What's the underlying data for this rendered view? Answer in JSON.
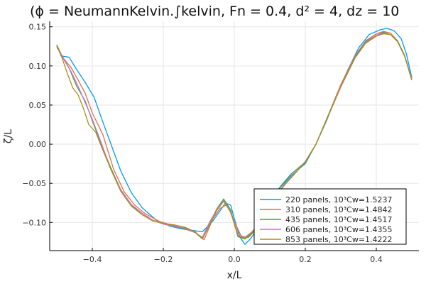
{
  "chart_data": {
    "type": "line",
    "title": "(ϕ = NeumannKelvin.∫kelvin, Fn = 0.4, d² = 4, dz = 10",
    "xlabel": "x/L",
    "ylabel": "ζ/L",
    "xlim": [
      -0.52,
      0.52
    ],
    "ylim": [
      -0.136,
      0.157
    ],
    "xticks": [
      -0.4,
      -0.2,
      0.0,
      0.2,
      0.4
    ],
    "xtick_labels": [
      "−0.4",
      "−0.2",
      "0.0",
      "0.2",
      "0.4"
    ],
    "yticks": [
      0.15,
      0.1,
      0.05,
      0.0,
      -0.05,
      -0.1
    ],
    "ytick_labels": [
      "0.15",
      "0.10",
      "0.05",
      "0.00",
      "−0.05",
      "−0.10"
    ],
    "grid": true,
    "legend_position": "bottom-right",
    "series": [
      {
        "name": "220 panels, 10³Cw=1.5237",
        "color": "#009AFA",
        "x": [
          -0.49,
          -0.465,
          -0.445,
          -0.42,
          -0.395,
          -0.37,
          -0.345,
          -0.32,
          -0.29,
          -0.26,
          -0.22,
          -0.18,
          -0.15,
          -0.12,
          -0.09,
          -0.06,
          -0.04,
          -0.025,
          -0.01,
          0.0,
          0.015,
          0.03,
          0.045,
          0.06,
          0.08,
          0.1,
          0.13,
          0.16,
          0.2,
          0.23,
          0.26,
          0.29,
          0.32,
          0.35,
          0.38,
          0.41,
          0.43,
          0.45,
          0.47,
          0.485,
          0.5
        ],
        "y": [
          0.113,
          0.111,
          0.096,
          0.079,
          0.06,
          0.028,
          -0.003,
          -0.034,
          -0.062,
          -0.081,
          -0.097,
          -0.105,
          -0.108,
          -0.11,
          -0.112,
          -0.098,
          -0.085,
          -0.075,
          -0.078,
          -0.095,
          -0.118,
          -0.128,
          -0.121,
          -0.112,
          -0.095,
          -0.075,
          -0.055,
          -0.04,
          -0.025,
          0.0,
          0.03,
          0.065,
          0.095,
          0.123,
          0.14,
          0.146,
          0.148,
          0.145,
          0.135,
          0.115,
          0.085
        ]
      },
      {
        "name": "310 panels, 10³Cw=1.4842",
        "color": "#E36F47",
        "x": [
          -0.5,
          -0.48,
          -0.46,
          -0.44,
          -0.42,
          -0.4,
          -0.37,
          -0.34,
          -0.31,
          -0.28,
          -0.25,
          -0.21,
          -0.17,
          -0.14,
          -0.11,
          -0.085,
          -0.06,
          -0.04,
          -0.02,
          0.0,
          0.02,
          0.04,
          0.06,
          0.08,
          0.11,
          0.14,
          0.17,
          0.2,
          0.23,
          0.26,
          0.3,
          0.34,
          0.37,
          0.4,
          0.42,
          0.44,
          0.46,
          0.48,
          0.5
        ],
        "y": [
          0.125,
          0.109,
          0.098,
          0.082,
          0.065,
          0.04,
          0.012,
          -0.032,
          -0.061,
          -0.078,
          -0.089,
          -0.099,
          -0.104,
          -0.108,
          -0.113,
          -0.122,
          -0.095,
          -0.082,
          -0.077,
          -0.099,
          -0.118,
          -0.119,
          -0.11,
          -0.097,
          -0.072,
          -0.052,
          -0.037,
          -0.022,
          0.0,
          0.032,
          0.076,
          0.113,
          0.132,
          0.141,
          0.144,
          0.142,
          0.132,
          0.113,
          0.082
        ]
      },
      {
        "name": "435 panels, 10³Cw=1.4517",
        "color": "#3EA44E",
        "x": [
          -0.5,
          -0.485,
          -0.465,
          -0.445,
          -0.42,
          -0.4,
          -0.375,
          -0.35,
          -0.32,
          -0.29,
          -0.26,
          -0.23,
          -0.2,
          -0.17,
          -0.14,
          -0.11,
          -0.09,
          -0.07,
          -0.05,
          -0.03,
          -0.01,
          0.01,
          0.03,
          0.05,
          0.07,
          0.1,
          0.13,
          0.16,
          0.2,
          0.23,
          0.26,
          0.3,
          0.34,
          0.37,
          0.4,
          0.42,
          0.44,
          0.46,
          0.48,
          0.5
        ],
        "y": [
          0.127,
          0.112,
          0.097,
          0.075,
          0.055,
          0.03,
          0.0,
          -0.028,
          -0.058,
          -0.078,
          -0.09,
          -0.097,
          -0.102,
          -0.105,
          -0.108,
          -0.113,
          -0.121,
          -0.103,
          -0.083,
          -0.07,
          -0.084,
          -0.118,
          -0.121,
          -0.114,
          -0.101,
          -0.073,
          -0.054,
          -0.038,
          -0.023,
          0.0,
          0.032,
          0.074,
          0.112,
          0.131,
          0.139,
          0.143,
          0.14,
          0.132,
          0.113,
          0.083
        ]
      },
      {
        "name": "606 panels, 10³Cw=1.4355",
        "color": "#C271D2",
        "x": [
          -0.5,
          -0.48,
          -0.46,
          -0.44,
          -0.42,
          -0.4,
          -0.375,
          -0.35,
          -0.32,
          -0.29,
          -0.26,
          -0.23,
          -0.2,
          -0.17,
          -0.14,
          -0.11,
          -0.09,
          -0.07,
          -0.05,
          -0.03,
          -0.01,
          0.01,
          0.03,
          0.05,
          0.08,
          0.11,
          0.14,
          0.17,
          0.2,
          0.23,
          0.26,
          0.3,
          0.34,
          0.37,
          0.4,
          0.42,
          0.44,
          0.46,
          0.48,
          0.5
        ],
        "y": [
          0.124,
          0.108,
          0.093,
          0.074,
          0.053,
          0.032,
          0.002,
          -0.03,
          -0.058,
          -0.077,
          -0.088,
          -0.097,
          -0.102,
          -0.105,
          -0.107,
          -0.113,
          -0.119,
          -0.1,
          -0.084,
          -0.072,
          -0.086,
          -0.115,
          -0.119,
          -0.112,
          -0.094,
          -0.07,
          -0.052,
          -0.037,
          -0.023,
          0.0,
          0.031,
          0.074,
          0.111,
          0.13,
          0.139,
          0.142,
          0.14,
          0.131,
          0.112,
          0.083
        ]
      },
      {
        "name": "853 panels, 10³Cw=1.4222",
        "color": "#AC8E18",
        "x": [
          -0.5,
          -0.485,
          -0.47,
          -0.455,
          -0.44,
          -0.425,
          -0.41,
          -0.39,
          -0.37,
          -0.345,
          -0.32,
          -0.29,
          -0.26,
          -0.23,
          -0.2,
          -0.17,
          -0.14,
          -0.11,
          -0.09,
          -0.07,
          -0.05,
          -0.03,
          -0.01,
          0.01,
          0.03,
          0.05,
          0.08,
          0.11,
          0.14,
          0.17,
          0.2,
          0.23,
          0.26,
          0.3,
          0.34,
          0.37,
          0.4,
          0.42,
          0.44,
          0.46,
          0.48,
          0.5
        ],
        "y": [
          0.126,
          0.11,
          0.09,
          0.072,
          0.063,
          0.046,
          0.025,
          0.015,
          -0.008,
          -0.035,
          -0.06,
          -0.079,
          -0.09,
          -0.098,
          -0.101,
          -0.103,
          -0.106,
          -0.112,
          -0.121,
          -0.104,
          -0.085,
          -0.073,
          -0.087,
          -0.117,
          -0.12,
          -0.113,
          -0.093,
          -0.071,
          -0.053,
          -0.038,
          -0.023,
          0.0,
          0.031,
          0.073,
          0.11,
          0.129,
          0.138,
          0.141,
          0.14,
          0.131,
          0.112,
          0.082
        ]
      }
    ]
  }
}
